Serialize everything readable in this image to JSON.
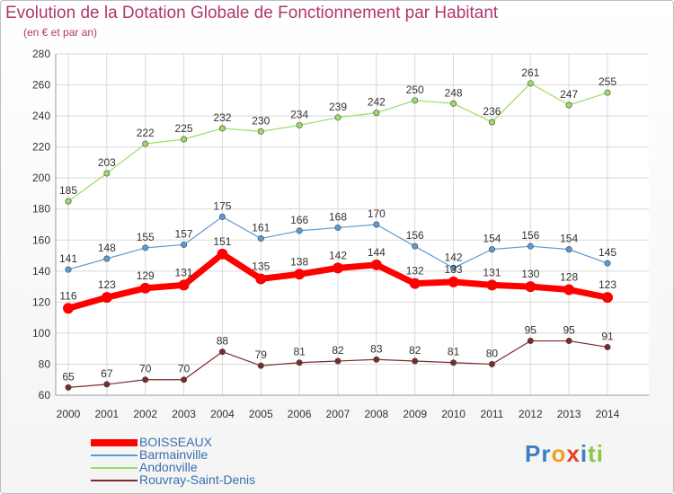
{
  "title": "Evolution de la Dotation Globale de Fonctionnement par Habitant",
  "subtitle": "(en € et par an)",
  "logo": "Proxiti",
  "chart_data": {
    "type": "line",
    "x": [
      "2000",
      "2001",
      "2002",
      "2003",
      "2004",
      "2005",
      "2006",
      "2007",
      "2008",
      "2009",
      "2010",
      "2011",
      "2012",
      "2013",
      "2014"
    ],
    "ylim": [
      60,
      280
    ],
    "yticks": [
      60,
      80,
      100,
      120,
      140,
      160,
      180,
      200,
      220,
      240,
      260,
      280
    ],
    "grid": true,
    "legend_position": "bottom-left",
    "series": [
      {
        "name": "BOISSEAUX",
        "color": "#ff0000",
        "values": [
          116,
          123,
          129,
          131,
          151,
          135,
          138,
          142,
          144,
          132,
          133,
          131,
          130,
          128,
          123
        ],
        "labels": [
          "116",
          "123",
          "129",
          "131",
          "151",
          "135",
          "138",
          "142",
          "144",
          "132",
          "133",
          "131",
          "130",
          "128",
          "123"
        ]
      },
      {
        "name": "Barmainville",
        "color": "#5b9bd5",
        "values": [
          141,
          148,
          155,
          157,
          175,
          161,
          166,
          168,
          170,
          156,
          142,
          154,
          156,
          154,
          145
        ],
        "labels": [
          "141",
          "148",
          "155",
          "157",
          "175",
          "161",
          "166",
          "168",
          "170",
          "156",
          "142",
          "154",
          "156",
          "154",
          "145"
        ]
      },
      {
        "name": "Andonville",
        "color": "#99dd66",
        "values": [
          185,
          203,
          222,
          225,
          232,
          230,
          234,
          239,
          242,
          250,
          248,
          236,
          261,
          247,
          255
        ],
        "labels": [
          "185",
          "203",
          "222",
          "225",
          "232",
          "230",
          "234",
          "239",
          "242",
          "250",
          "248",
          "236",
          "261",
          "247",
          "255"
        ]
      },
      {
        "name": "Rouvray-Saint-Denis",
        "color": "#7a2a2a",
        "values": [
          65,
          67,
          70,
          70,
          88,
          79,
          81,
          82,
          83,
          82,
          81,
          80,
          95,
          95,
          91
        ],
        "labels": [
          "65",
          "67",
          "70",
          "70",
          "88",
          "79",
          "81",
          "82",
          "83",
          "82",
          "81",
          "80",
          "95",
          "95",
          "91"
        ]
      }
    ]
  }
}
